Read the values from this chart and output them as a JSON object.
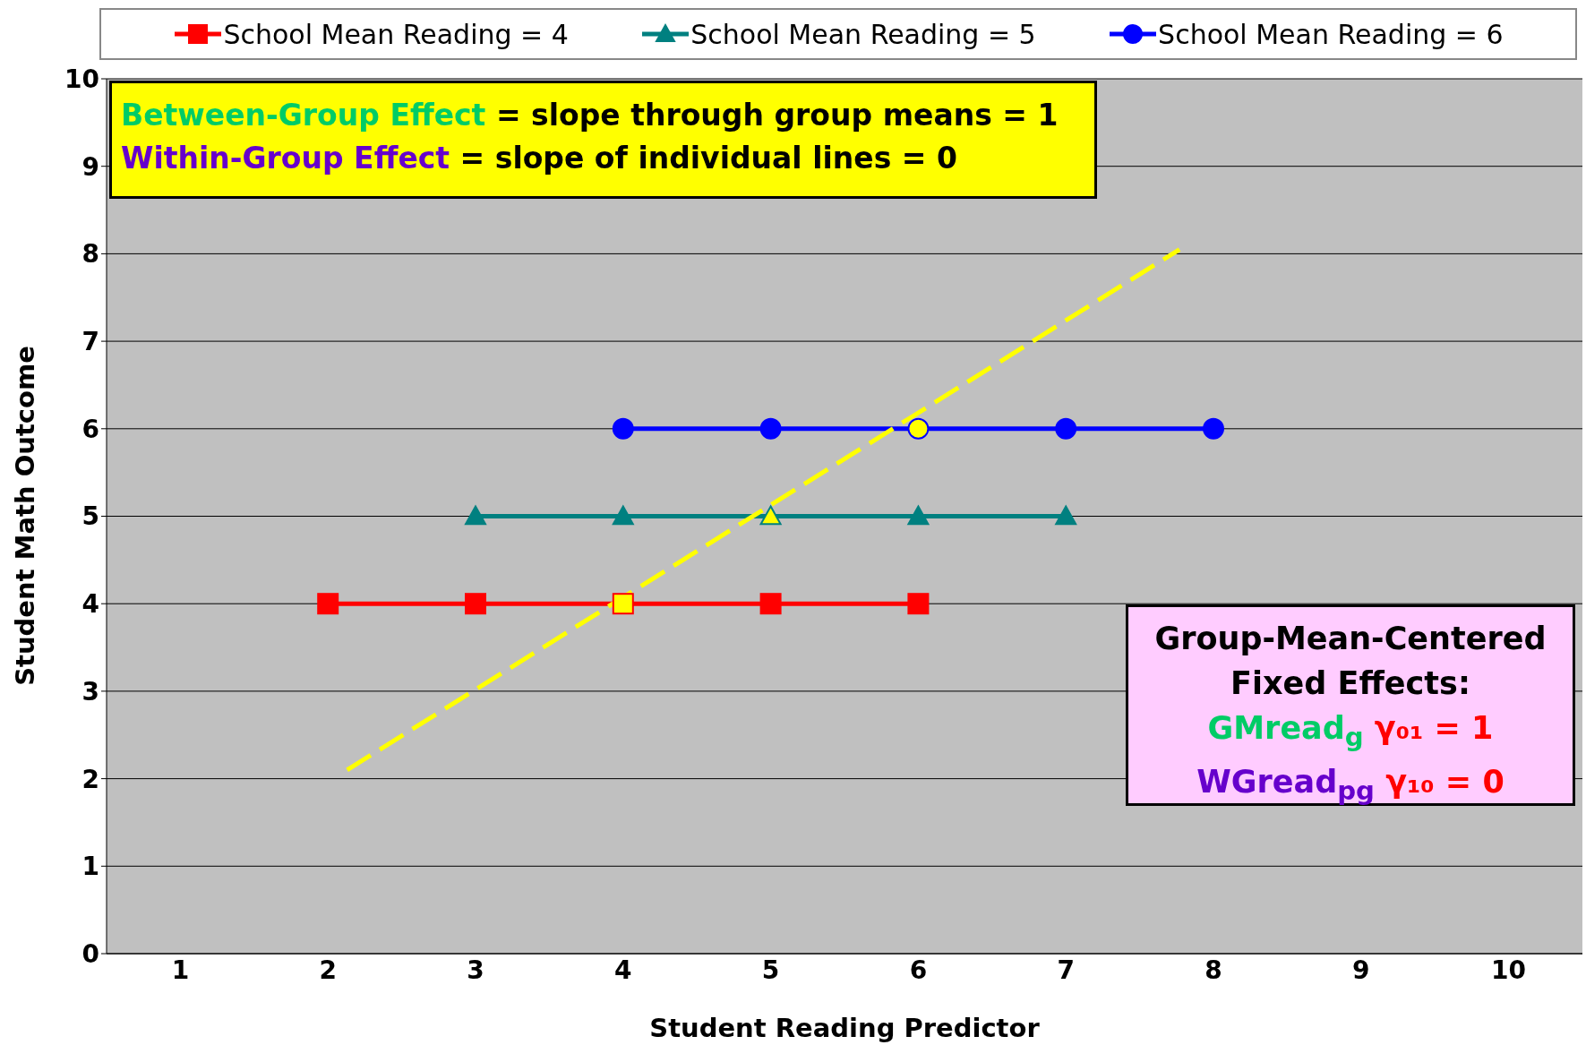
{
  "chart_data": {
    "type": "line",
    "xlabel": "Student Reading Predictor",
    "ylabel": "Student Math Outcome",
    "xlim": [
      0.5,
      10.5
    ],
    "xticks": [
      1,
      2,
      3,
      4,
      5,
      6,
      7,
      8,
      9,
      10
    ],
    "ylim": [
      0,
      10
    ],
    "yticks": [
      0,
      1,
      2,
      3,
      4,
      5,
      6,
      7,
      8,
      9,
      10
    ],
    "grid": "y",
    "legend": "top",
    "line_style": "solid",
    "series": [
      {
        "name": "School Mean Reading = 4",
        "color": "#ff0000",
        "marker": "square",
        "x": [
          2,
          3,
          4,
          5,
          6
        ],
        "values": [
          4,
          4,
          4,
          4,
          4
        ],
        "colors": [
          "#ff0000",
          "#ff0000",
          "#ffff00",
          "#ff0000",
          "#ff0000"
        ]
      },
      {
        "name": "School Mean Reading = 5",
        "color": "#008080",
        "marker": "triangle",
        "x": [
          3,
          4,
          5,
          6,
          7
        ],
        "values": [
          5,
          5,
          5,
          5,
          5
        ],
        "colors": [
          "#008080",
          "#008080",
          "#ffff00",
          "#008080",
          "#008080"
        ]
      },
      {
        "name": "School Mean Reading = 6",
        "color": "#0000ff",
        "marker": "circle",
        "x": [
          4,
          5,
          6,
          7,
          8
        ],
        "values": [
          6,
          6,
          6,
          6,
          6
        ],
        "colors": [
          "#0000ff",
          "#0000ff",
          "#ffff00",
          "#0000ff",
          "#0000ff"
        ]
      },
      {
        "color": "#ffff00",
        "marker": "none",
        "line_style": "dashed",
        "x": [
          2.13,
          7.77
        ],
        "values": [
          2.1,
          8.05
        ]
      }
    ],
    "annotations": [
      "Between-Group Effect",
      "= slope through group means = 1",
      "Within-Group Effect",
      "= slope of individual lines = 0",
      "Group-Mean-Centered",
      "Fixed Effects:",
      "GMread$_{g}$",
      "γ₀₁ = 1",
      "WGread$_{pg}$",
      "γ₁₀ = 0"
    ]
  }
}
